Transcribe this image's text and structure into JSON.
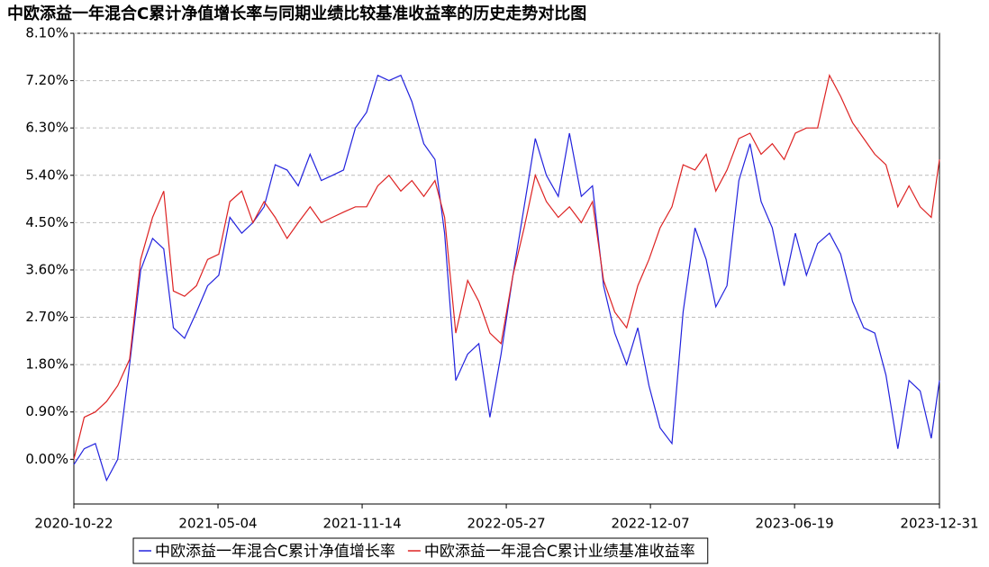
{
  "chart_data": {
    "type": "line",
    "title": "中欧添益一年混合C累计净值增长率与同期业绩比较基准收益率的历史走势对比图",
    "x": [
      "2020-10-22",
      "2020-11-05",
      "2020-11-20",
      "2020-12-05",
      "2020-12-20",
      "2021-01-05",
      "2021-01-20",
      "2021-02-05",
      "2021-02-20",
      "2021-03-05",
      "2021-03-20",
      "2021-04-05",
      "2021-04-20",
      "2021-05-05",
      "2021-05-20",
      "2021-06-05",
      "2021-06-20",
      "2021-07-05",
      "2021-07-20",
      "2021-08-05",
      "2021-08-20",
      "2021-09-05",
      "2021-09-20",
      "2021-10-05",
      "2021-10-20",
      "2021-11-05",
      "2021-11-20",
      "2021-12-05",
      "2021-12-20",
      "2022-01-05",
      "2022-01-20",
      "2022-02-05",
      "2022-02-20",
      "2022-03-05",
      "2022-03-20",
      "2022-04-05",
      "2022-04-20",
      "2022-05-05",
      "2022-05-20",
      "2022-06-05",
      "2022-06-20",
      "2022-07-05",
      "2022-07-20",
      "2022-08-05",
      "2022-08-20",
      "2022-09-05",
      "2022-09-20",
      "2022-10-05",
      "2022-10-20",
      "2022-11-05",
      "2022-11-20",
      "2022-12-05",
      "2022-12-20",
      "2023-01-05",
      "2023-01-20",
      "2023-02-05",
      "2023-02-20",
      "2023-03-05",
      "2023-03-20",
      "2023-04-05",
      "2023-04-20",
      "2023-05-05",
      "2023-05-20",
      "2023-06-05",
      "2023-06-20",
      "2023-07-05",
      "2023-07-20",
      "2023-08-05",
      "2023-08-20",
      "2023-09-05",
      "2023-09-20",
      "2023-10-05",
      "2023-10-20",
      "2023-11-05",
      "2023-11-20",
      "2023-12-05",
      "2023-12-20",
      "2023-12-31"
    ],
    "series": [
      {
        "name": "中欧添益一年混合C累计净值增长率",
        "color": "#2222dd",
        "values": [
          -0.1,
          0.2,
          0.3,
          -0.4,
          0.0,
          1.8,
          3.6,
          4.2,
          4.0,
          2.5,
          2.3,
          2.8,
          3.3,
          3.5,
          4.6,
          4.3,
          4.5,
          4.8,
          5.6,
          5.5,
          5.2,
          5.8,
          5.3,
          5.4,
          5.5,
          6.3,
          6.6,
          7.3,
          7.2,
          7.3,
          6.8,
          6.0,
          5.7,
          4.3,
          1.5,
          2.0,
          2.2,
          0.8,
          2.0,
          3.5,
          4.8,
          6.1,
          5.4,
          5.0,
          6.2,
          5.0,
          5.2,
          3.3,
          2.4,
          1.8,
          2.5,
          1.4,
          0.6,
          0.3,
          2.8,
          4.4,
          3.8,
          2.9,
          3.3,
          5.3,
          6.0,
          4.9,
          4.4,
          3.3,
          4.3,
          3.5,
          4.1,
          4.3,
          3.9,
          3.0,
          2.5,
          2.4,
          1.6,
          0.2,
          1.5,
          1.3,
          0.4,
          1.5
        ]
      },
      {
        "name": "中欧添益一年混合C累计业绩基准收益率",
        "color": "#dd2222",
        "values": [
          0.0,
          0.8,
          0.9,
          1.1,
          1.4,
          1.9,
          3.8,
          4.6,
          5.1,
          3.2,
          3.1,
          3.3,
          3.8,
          3.9,
          4.9,
          5.1,
          4.5,
          4.9,
          4.6,
          4.2,
          4.5,
          4.8,
          4.5,
          4.6,
          4.7,
          4.8,
          4.8,
          5.2,
          5.4,
          5.1,
          5.3,
          5.0,
          5.3,
          4.6,
          2.4,
          3.4,
          3.0,
          2.4,
          2.2,
          3.5,
          4.4,
          5.4,
          4.9,
          4.6,
          4.8,
          4.5,
          4.9,
          3.4,
          2.8,
          2.5,
          3.3,
          3.8,
          4.4,
          4.8,
          5.6,
          5.5,
          5.8,
          5.1,
          5.5,
          6.1,
          6.2,
          5.8,
          6.0,
          5.7,
          6.2,
          6.3,
          6.3,
          7.3,
          6.9,
          6.4,
          6.1,
          5.8,
          5.6,
          4.8,
          5.2,
          4.8,
          4.6,
          5.7
        ]
      }
    ],
    "xlim": [
      "2020-10-22",
      "2023-12-31"
    ],
    "xticks": [
      "2020-10-22",
      "2021-05-04",
      "2021-11-14",
      "2022-05-27",
      "2022-12-07",
      "2023-06-19",
      "2023-12-31"
    ],
    "ylim": [
      -0.85,
      8.1
    ],
    "yticks": [
      {
        "value": 0,
        "label": "0.00%"
      },
      {
        "value": 0.9,
        "label": "0.90%"
      },
      {
        "value": 1.8,
        "label": "1.80%"
      },
      {
        "value": 2.7,
        "label": "2.70%"
      },
      {
        "value": 3.6,
        "label": "3.60%"
      },
      {
        "value": 4.5,
        "label": "4.50%"
      },
      {
        "value": 5.4,
        "label": "5.40%"
      },
      {
        "value": 6.3,
        "label": "6.30%"
      },
      {
        "value": 7.2,
        "label": "7.20%"
      },
      {
        "value": 8.1,
        "label": "8.10%"
      }
    ],
    "grid": true,
    "legend": "bottom"
  }
}
